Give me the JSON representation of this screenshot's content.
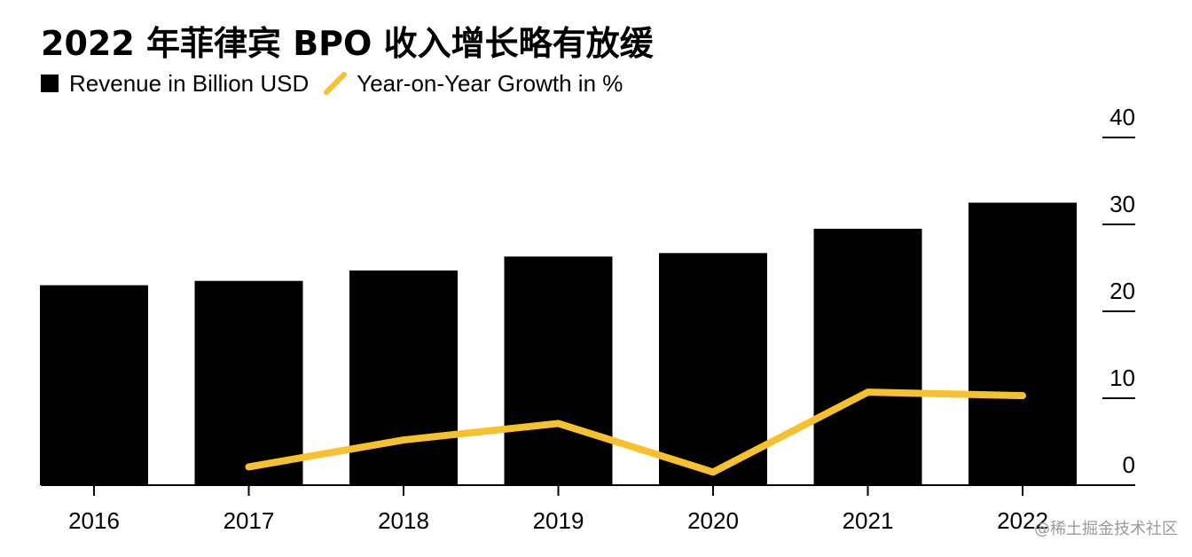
{
  "title": "2022 年菲律宾 BPO 收入增长略有放缓",
  "watermark": "@稀土掘金技术社区",
  "colors": {
    "bar": "#000000",
    "line": "#f7c12e",
    "axis": "#000000",
    "text": "#000000"
  },
  "chart_data": {
    "type": "bar",
    "categories": [
      "2016",
      "2017",
      "2018",
      "2019",
      "2020",
      "2021",
      "2022"
    ],
    "series": [
      {
        "name": "Revenue in Billion USD",
        "type": "bar",
        "values": [
          23.0,
          23.5,
          24.7,
          26.3,
          26.7,
          29.5,
          32.5
        ]
      },
      {
        "name": "Year-on-Year Growth in %",
        "type": "line",
        "values": [
          null,
          2.1,
          5.2,
          7.1,
          1.5,
          10.7,
          10.3
        ]
      }
    ],
    "ylim": [
      0,
      40
    ],
    "yticks": [
      "0",
      "10",
      "20",
      "30",
      "40"
    ],
    "ytick_values": [
      0,
      10,
      20,
      30,
      40
    ],
    "y_axis_side": "right",
    "legend_position": "top-left",
    "grid": false
  }
}
